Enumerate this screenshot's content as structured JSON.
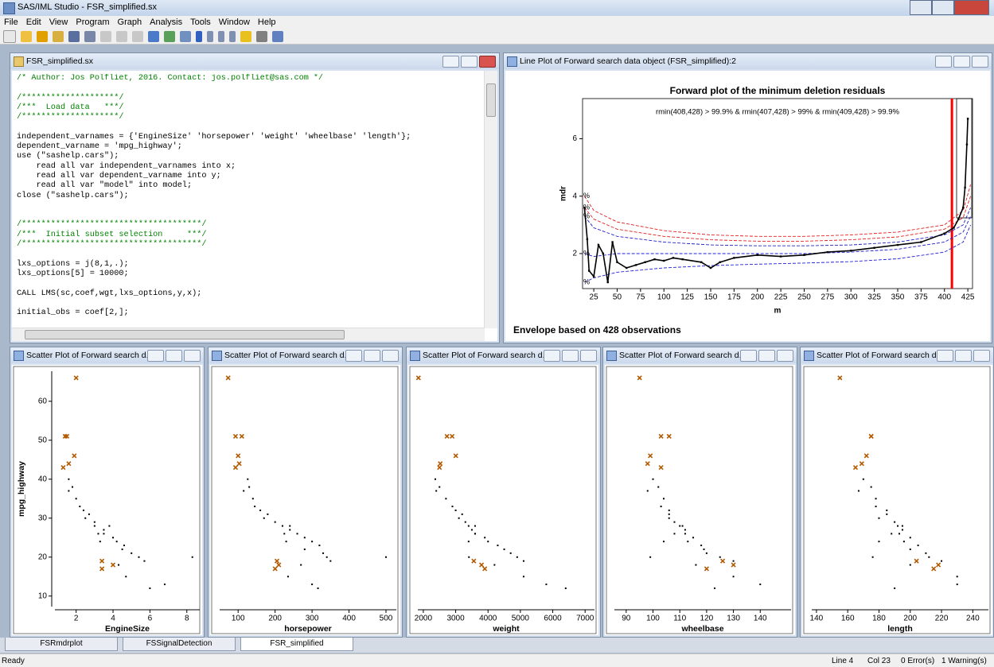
{
  "app": {
    "title": "SAS/IML Studio - FSR_simplified.sx",
    "menu": [
      "File",
      "Edit",
      "View",
      "Program",
      "Graph",
      "Analysis",
      "Tools",
      "Window",
      "Help"
    ]
  },
  "editor": {
    "title": "FSR_simplified.sx",
    "blocks": [
      [
        "/* Author: Jos Polfliet, 2016. Contact: jos.polfliet@sas.com */"
      ],
      [
        "/********************/",
        "/***  Load data   ***/",
        "/********************/"
      ],
      [
        "independent_varnames = {'EngineSize' 'horsepower' 'weight' 'wheelbase' 'length'};",
        "dependent_varname = 'mpg_highway';",
        "use (\"sashelp.cars\");",
        "    read all var independent_varnames into x;",
        "    read all var dependent_varname into y;",
        "    read all var \"model\" into model;",
        "close (\"sashelp.cars\");"
      ],
      [
        "/*************************************/",
        "/***  Initial subset selection     ***/",
        "/*************************************/"
      ],
      [
        "lxs_options = j(8,1,.);",
        "lxs_options[5] = 10000;"
      ],
      [
        "CALL LMS(sc,coef,wgt,lxs_options,y,x);"
      ],
      [
        "initial_obs = coef[2,];"
      ]
    ]
  },
  "chart_data": [
    {
      "type": "line",
      "window_title": "Line Plot of Forward search data object (FSR_simplified):2",
      "title": "Forward plot of the minimum deletion residuals",
      "annotation": "rmin(408,428) > 99.9% & rmin(407,428) > 99% & rmin(409,428) > 99.9%",
      "footnote": "Envelope based on 428 observations",
      "x_label": "m",
      "y_label": "mdr",
      "xlim": [
        13,
        430
      ],
      "xticks": [
        25,
        50,
        75,
        100,
        125,
        150,
        175,
        200,
        225,
        250,
        275,
        300,
        325,
        350,
        375,
        400,
        425
      ],
      "ylim": [
        0.78,
        7.4
      ],
      "yticks": [
        2,
        4,
        6
      ],
      "vline": {
        "value": 408,
        "color": "#ff0000"
      },
      "series": [
        {
          "name": "%",
          "color": "#e02020",
          "dash": true,
          "x": [
            15,
            25,
            50,
            100,
            150,
            200,
            250,
            300,
            350,
            400,
            420,
            428
          ],
          "values": [
            4.0,
            3.5,
            3.1,
            2.8,
            2.65,
            2.6,
            2.6,
            2.65,
            2.75,
            3.0,
            3.5,
            4.4
          ]
        },
        {
          "name": "%",
          "color": "#e02020",
          "dash": true,
          "x": [
            15,
            25,
            50,
            100,
            150,
            200,
            250,
            300,
            350,
            400,
            420,
            428
          ],
          "values": [
            3.6,
            3.2,
            2.85,
            2.6,
            2.48,
            2.43,
            2.43,
            2.48,
            2.58,
            2.85,
            3.25,
            4.0
          ]
        },
        {
          "name": "%",
          "color": "#2020d0",
          "dash": true,
          "x": [
            15,
            25,
            50,
            100,
            150,
            200,
            250,
            300,
            350,
            400,
            420,
            428
          ],
          "values": [
            3.3,
            2.9,
            2.6,
            2.4,
            2.3,
            2.27,
            2.27,
            2.3,
            2.4,
            2.65,
            3.0,
            3.6
          ]
        },
        {
          "name": "%",
          "color": "#2020d0",
          "dash": true,
          "x": [
            15,
            25,
            50,
            100,
            150,
            200,
            250,
            300,
            350,
            400,
            420,
            428
          ],
          "values": [
            2.0,
            1.9,
            2.0,
            2.0,
            2.0,
            2.0,
            2.0,
            2.05,
            2.15,
            2.4,
            2.75,
            3.3
          ]
        },
        {
          "name": "%",
          "color": "#2020d0",
          "dash": true,
          "x": [
            15,
            25,
            50,
            100,
            150,
            200,
            250,
            300,
            350,
            400,
            420,
            428
          ],
          "values": [
            1.0,
            1.15,
            1.35,
            1.5,
            1.58,
            1.63,
            1.67,
            1.72,
            1.82,
            2.05,
            2.4,
            3.0
          ]
        },
        {
          "color": "#000000",
          "dash": false,
          "x": [
            15,
            18,
            20,
            25,
            30,
            35,
            40,
            45,
            50,
            60,
            70,
            80,
            90,
            100,
            110,
            120,
            140,
            150,
            160,
            175,
            200,
            225,
            250,
            275,
            300,
            325,
            350,
            375,
            400,
            410,
            415,
            420,
            422,
            424,
            425
          ],
          "values": [
            3.6,
            2.5,
            1.4,
            1.2,
            2.3,
            2.0,
            1.0,
            2.4,
            1.7,
            1.5,
            1.6,
            1.7,
            1.8,
            1.75,
            1.85,
            1.8,
            1.7,
            1.5,
            1.7,
            1.85,
            1.95,
            1.9,
            1.95,
            2.05,
            2.1,
            2.2,
            2.3,
            2.4,
            2.7,
            2.9,
            3.2,
            3.6,
            4.3,
            5.8,
            6.7
          ]
        }
      ]
    },
    {
      "type": "scatter",
      "window_title": "Scatter Plot of Forward search d...",
      "x_label": "EngineSize",
      "y_label": "mpg_highway",
      "xlim": [
        0.85,
        8.7
      ],
      "xticks": [
        2,
        4,
        6,
        8
      ],
      "ylim": [
        7.3,
        67.7
      ],
      "yticks": [
        10,
        20,
        30,
        40,
        50,
        60
      ],
      "series": [
        {
          "color": "#000000",
          "marker": "dot",
          "x": [
            1.8,
            2.0,
            2.4,
            2.5,
            3.0,
            3.0,
            3.5,
            3.5,
            2.2,
            4.0,
            4.2,
            4.6,
            5.0,
            5.4,
            5.7,
            3.2,
            4.5,
            8.3,
            6.0,
            4.7,
            2.7,
            3.8,
            1.6,
            3.3,
            6.8,
            4.3,
            1.6
          ],
          "values": [
            38,
            35,
            32,
            30,
            29,
            28,
            27,
            26,
            33,
            25,
            24,
            23,
            21,
            20,
            19,
            26,
            22,
            20,
            12,
            15,
            31,
            28,
            37,
            24,
            13,
            18,
            40
          ]
        },
        {
          "color": "#b35900",
          "marker": "x",
          "x": [
            2.0,
            1.5,
            1.4,
            1.9,
            1.6,
            1.3,
            3.4,
            4.0,
            3.4
          ],
          "values": [
            66,
            51,
            51,
            46,
            44,
            43,
            19,
            18,
            17
          ]
        }
      ]
    },
    {
      "type": "scatter",
      "window_title": "Scatter Plot of Forward search d...",
      "x_label": "horsepower",
      "xlim": [
        50,
        528
      ],
      "xticks": [
        100,
        200,
        300,
        400,
        500
      ],
      "ylim": [
        7.3,
        67.7
      ],
      "series": [
        {
          "color": "#000000",
          "marker": "dot",
          "x": [
            130,
            140,
            160,
            170,
            200,
            220,
            240,
            260,
            145,
            280,
            300,
            320,
            330,
            340,
            350,
            225,
            280,
            500,
            316,
            235,
            180,
            240,
            115,
            230,
            300,
            270,
            126
          ],
          "values": [
            38,
            35,
            32,
            30,
            29,
            28,
            27,
            26,
            33,
            25,
            24,
            23,
            21,
            20,
            19,
            26,
            22,
            20,
            12,
            15,
            31,
            28,
            37,
            24,
            13,
            18,
            40
          ]
        },
        {
          "color": "#b35900",
          "marker": "x",
          "x": [
            73,
            110,
            93,
            100,
            103,
            93,
            205,
            210,
            200
          ],
          "values": [
            66,
            51,
            51,
            46,
            44,
            43,
            19,
            18,
            17
          ]
        }
      ]
    },
    {
      "type": "scatter",
      "window_title": "Scatter Plot of Forward search d...",
      "x_label": "weight",
      "xlim": [
        1830,
        7290
      ],
      "xticks": [
        2000,
        3000,
        4000,
        5000,
        6000,
        7000
      ],
      "ylim": [
        7.3,
        67.7
      ],
      "series": [
        {
          "color": "#000000",
          "marker": "dot",
          "x": [
            2500,
            2700,
            3000,
            3100,
            3300,
            3400,
            3500,
            3600,
            2900,
            3900,
            4000,
            4300,
            4700,
            4900,
            5100,
            3600,
            4500,
            3410,
            6400,
            5100,
            3200,
            3600,
            2400,
            3400,
            5800,
            4200,
            2370
          ],
          "values": [
            38,
            35,
            32,
            30,
            29,
            28,
            27,
            26,
            33,
            25,
            24,
            23,
            21,
            20,
            19,
            26,
            22,
            20,
            12,
            15,
            31,
            28,
            37,
            24,
            13,
            18,
            40
          ]
        },
        {
          "color": "#b35900",
          "marker": "x",
          "x": [
            1850,
            2890,
            2732,
            3003,
            2524,
            2500,
            3560,
            3800,
            3900
          ],
          "values": [
            66,
            51,
            51,
            46,
            44,
            43,
            19,
            18,
            17
          ]
        }
      ]
    },
    {
      "type": "scatter",
      "window_title": "Scatter Plot of Forward search d...",
      "x_label": "wheelbase",
      "xlim": [
        85.6,
        151.5
      ],
      "xticks": [
        90,
        100,
        110,
        120,
        130,
        140
      ],
      "ylim": [
        7.3,
        67.7
      ],
      "series": [
        {
          "color": "#000000",
          "marker": "dot",
          "x": [
            102,
            104,
            106,
            106,
            108,
            110,
            112,
            108,
            103,
            115,
            113,
            118,
            120,
            125,
            130,
            112,
            119,
            99,
            123,
            130,
            106,
            111,
            98,
            104,
            140,
            116,
            100
          ],
          "values": [
            38,
            35,
            32,
            30,
            29,
            28,
            27,
            26,
            33,
            25,
            24,
            23,
            21,
            20,
            19,
            26,
            22,
            20,
            12,
            15,
            31,
            28,
            37,
            24,
            13,
            18,
            40
          ]
        },
        {
          "color": "#b35900",
          "marker": "x",
          "x": [
            95,
            106,
            103,
            99,
            98,
            103,
            126,
            130,
            120
          ],
          "values": [
            66,
            51,
            51,
            46,
            44,
            43,
            19,
            18,
            17
          ]
        }
      ]
    },
    {
      "type": "scatter",
      "window_title": "Scatter Plot of Forward search d...",
      "x_label": "length",
      "xlim": [
        137,
        250
      ],
      "xticks": [
        140,
        160,
        180,
        200,
        220,
        240
      ],
      "ylim": [
        7.3,
        67.7
      ],
      "series": [
        {
          "color": "#000000",
          "marker": "dot",
          "x": [
            175,
            178,
            185,
            180,
            190,
            192,
            195,
            188,
            178,
            200,
            196,
            205,
            210,
            212,
            220,
            193,
            200,
            176,
            190,
            230,
            185,
            195,
            167,
            180,
            230,
            200,
            170
          ],
          "values": [
            38,
            35,
            32,
            30,
            29,
            28,
            27,
            26,
            33,
            25,
            24,
            23,
            21,
            20,
            19,
            26,
            22,
            20,
            12,
            15,
            31,
            28,
            37,
            24,
            13,
            18,
            40
          ]
        },
        {
          "color": "#b35900",
          "marker": "x",
          "x": [
            155,
            175,
            175,
            172,
            169,
            165,
            204,
            218,
            215
          ],
          "values": [
            66,
            51,
            51,
            46,
            44,
            43,
            19,
            18,
            17
          ]
        }
      ]
    }
  ],
  "tabs": [
    "FSRmdrplot",
    "FSSignalDetection",
    "FSR_simplified"
  ],
  "status": [
    "Ready",
    "Line 4",
    "Col 23",
    "0 Error(s)",
    "1 Warning(s)"
  ]
}
